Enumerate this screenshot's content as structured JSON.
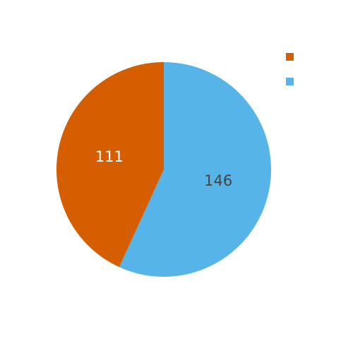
{
  "chart_data": {
    "type": "pie",
    "title": "",
    "slices": [
      {
        "label": "",
        "value": 146,
        "color": "#56b4e9",
        "label_color": "#444444"
      },
      {
        "label": "",
        "value": 111,
        "color": "#d55e00",
        "label_color": "#ffffff"
      }
    ],
    "start_angle_deg": 0,
    "direction": "clockwise",
    "legend": {
      "position": "top-right",
      "entries": [
        {
          "label": "",
          "color": "#d55e00"
        },
        {
          "label": "",
          "color": "#56b4e9"
        }
      ]
    }
  }
}
